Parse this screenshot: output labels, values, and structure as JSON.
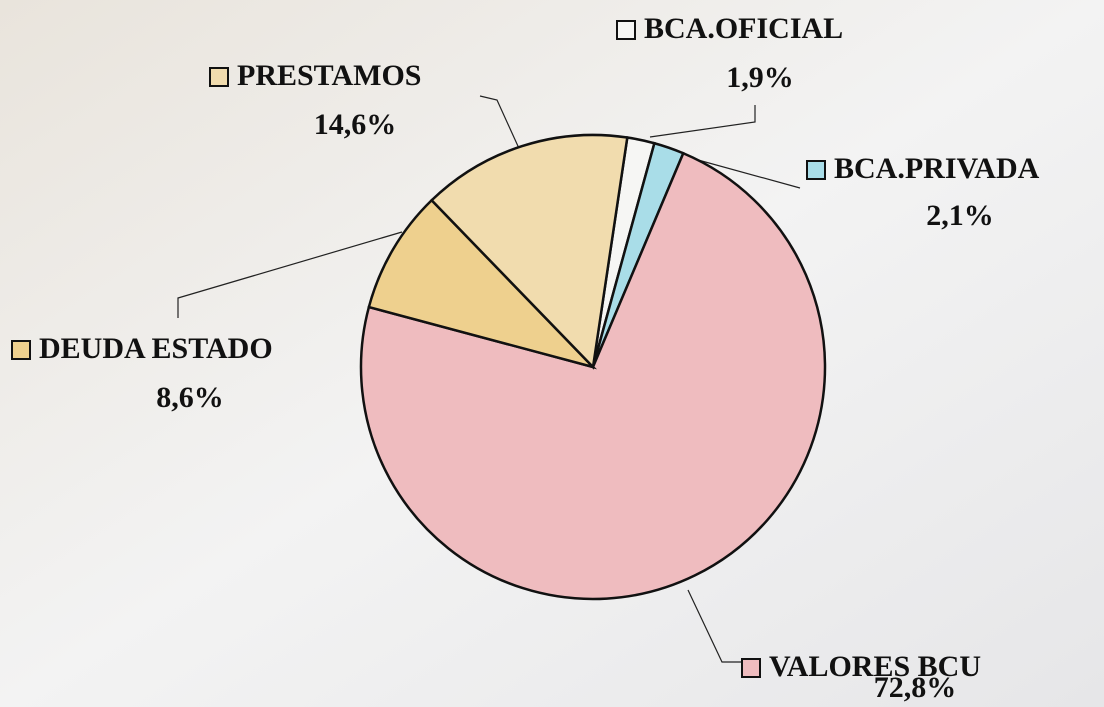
{
  "chart_data": {
    "type": "pie",
    "categories": [
      "BCA.OFICIAL",
      "BCA.PRIVADA",
      "VALORES BCU",
      "DEUDA ESTADO",
      "PRESTAMOS"
    ],
    "values": [
      1.9,
      2.1,
      72.8,
      8.6,
      14.6
    ],
    "value_labels": [
      "1,9%",
      "2,1%",
      "72,8%",
      "8,6%",
      "14,6%"
    ],
    "colors": [
      "#f6f6f4",
      "#a9dde8",
      "#efbcbf",
      "#eed08e",
      "#f1dcae"
    ]
  }
}
